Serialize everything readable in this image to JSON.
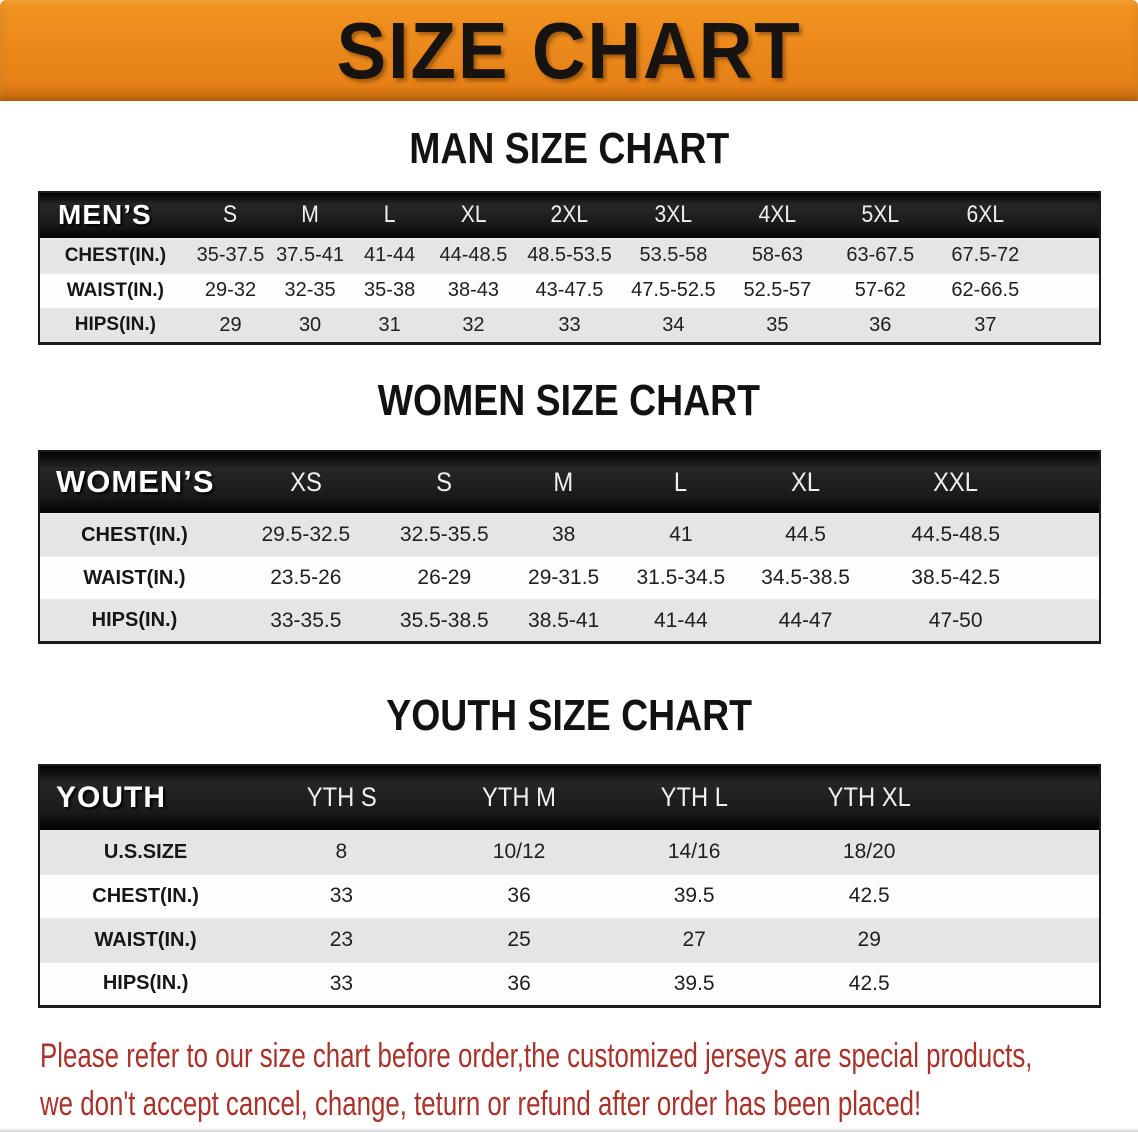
{
  "banner": {
    "title": "SIZE CHART",
    "bg_color": "#EC8A1C",
    "text_color": "#171310"
  },
  "sections": [
    {
      "heading": "MAN SIZE CHART",
      "header_label": "MEN’S",
      "columns": [
        "S",
        "M",
        "L",
        "XL",
        "2XL",
        "3XL",
        "4XL",
        "5XL",
        "6XL"
      ],
      "rows": [
        {
          "label": "CHEST(IN.)",
          "values": [
            "35-37.5",
            "37.5-41",
            "41-44",
            "44-48.5",
            "48.5-53.5",
            "53.5-58",
            "58-63",
            "63-67.5",
            "67.5-72"
          ]
        },
        {
          "label": "WAIST(IN.)",
          "values": [
            "29-32",
            "32-35",
            "35-38",
            "38-43",
            "43-47.5",
            "47.5-52.5",
            "52.5-57",
            "57-62",
            "62-66.5"
          ]
        },
        {
          "label": "HIPS(IN.)",
          "values": [
            "29",
            "30",
            "31",
            "32",
            "33",
            "34",
            "35",
            "36",
            "37"
          ]
        }
      ]
    },
    {
      "heading": "WOMEN SIZE CHART",
      "header_label": "WOMEN’S",
      "columns": [
        "XS",
        "S",
        "M",
        "L",
        "XL",
        "XXL"
      ],
      "rows": [
        {
          "label": "CHEST(IN.)",
          "values": [
            "29.5-32.5",
            "32.5-35.5",
            "38",
            "41",
            "44.5",
            "44.5-48.5"
          ]
        },
        {
          "label": "WAIST(IN.)",
          "values": [
            "23.5-26",
            "26-29",
            "29-31.5",
            "31.5-34.5",
            "34.5-38.5",
            "38.5-42.5"
          ]
        },
        {
          "label": "HIPS(IN.)",
          "values": [
            "33-35.5",
            "35.5-38.5",
            "38.5-41",
            "41-44",
            "44-47",
            "47-50"
          ]
        }
      ]
    },
    {
      "heading": "YOUTH SIZE CHART",
      "header_label": "YOUTH",
      "columns": [
        "YTH S",
        "YTH M",
        "YTH L",
        "YTH XL"
      ],
      "rows": [
        {
          "label": "U.S.SIZE",
          "values": [
            "8",
            "10/12",
            "14/16",
            "18/20"
          ]
        },
        {
          "label": "CHEST(IN.)",
          "values": [
            "33",
            "36",
            "39.5",
            "42.5"
          ]
        },
        {
          "label": "WAIST(IN.)",
          "values": [
            "23",
            "25",
            "27",
            "29"
          ]
        },
        {
          "label": "HIPS(IN.)",
          "values": [
            "33",
            "36",
            "39.5",
            "42.5"
          ]
        }
      ]
    }
  ],
  "disclaimer": {
    "line1": "Please refer to our size chart before order,the customized jerseys are special products,",
    "line2": "we don't accept cancel, change, teturn or refund after order has been placed!",
    "text_color": "#A9322B"
  },
  "style_colors": {
    "table_band_bg": "#141414",
    "row_alt_bg": "#E5E5E5",
    "row_bg": "#FDFDFD"
  }
}
